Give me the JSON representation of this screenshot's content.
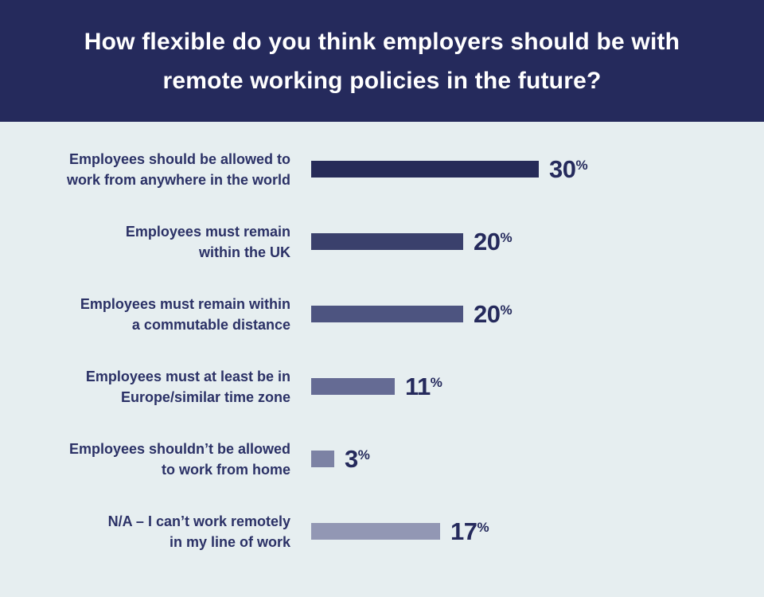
{
  "title_display": "How flexible do you think employers should be with\nremote working policies in the future?",
  "percent_symbol": "%",
  "colors": {
    "header_background": "#252a5c",
    "body_background": "#e6eef0",
    "label_text": "#2b3166",
    "value_text": "#252a5c",
    "title_text": "#ffffff"
  },
  "chart_data": {
    "type": "bar",
    "orientation": "horizontal",
    "title": "How flexible do you think employers should be with remote working policies in the future?",
    "value_unit": "%",
    "xlim": [
      0,
      30
    ],
    "grid": false,
    "legend": false,
    "categories": [
      "Employees should be allowed to work from anywhere in the world",
      "Employees must remain within the UK",
      "Employees must remain within a commutable distance",
      "Employees must at least be in Europe/similar time zone",
      "Employees shouldn’t be allowed to work from home",
      "N/A – I can’t work remotely in my line of work"
    ],
    "values": [
      30,
      20,
      20,
      11,
      3,
      17
    ],
    "rows": [
      {
        "label": "Employees should be allowed to\nwork from anywhere in the world",
        "value": 30,
        "bar_color": "#262b58"
      },
      {
        "label": "Employees must remain\nwithin the UK",
        "value": 20,
        "bar_color": "#3a406c"
      },
      {
        "label": "Employees must remain within\na commutable distance",
        "value": 20,
        "bar_color": "#4d5480"
      },
      {
        "label": "Employees must at least be in\nEurope/similar time zone",
        "value": 11,
        "bar_color": "#656b94"
      },
      {
        "label": "Employees shouldn’t be allowed\nto work from home",
        "value": 3,
        "bar_color": "#7c82a4"
      },
      {
        "label": "N/A – I can’t work remotely\nin my line of work",
        "value": 17,
        "bar_color": "#9297b4"
      }
    ]
  }
}
